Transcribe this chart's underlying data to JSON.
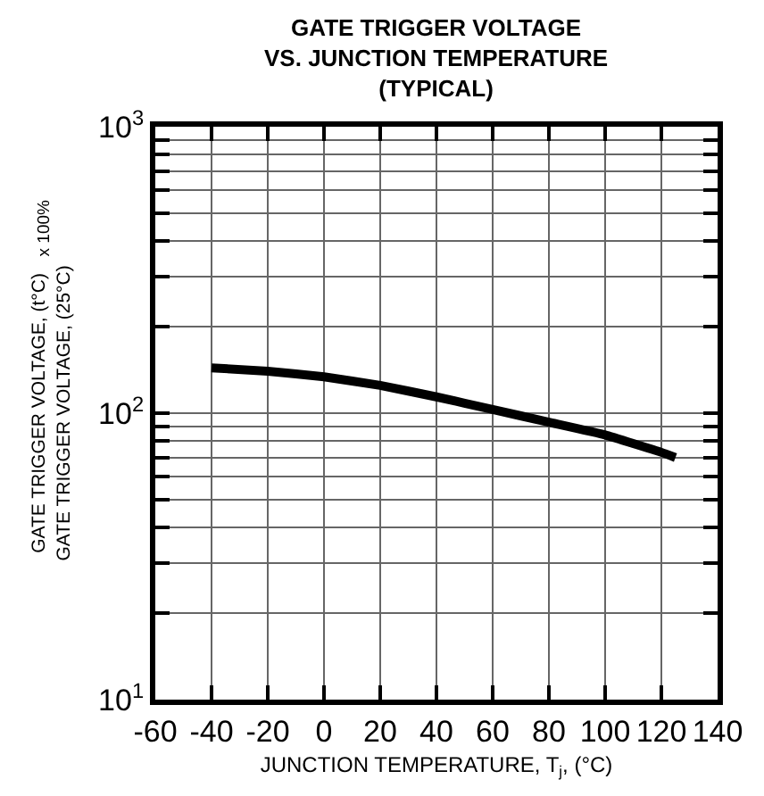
{
  "chart_data": {
    "type": "line",
    "title": "GATE TRIGGER VOLTAGE\nVS. JUNCTION TEMPERATURE\n(TYPICAL)",
    "xlabel": "JUNCTION TEMPERATURE, T$_{j}$, (°C)",
    "ylabel": "GATE TRIGGER VOLTAGE, (t°C)\nGATE TRIGGER VOLTAGE, (25°C)",
    "annotations": [
      "x 100%"
    ],
    "x": [
      -40,
      -20,
      0,
      20,
      40,
      60,
      80,
      100,
      120,
      125
    ],
    "series": [
      {
        "color": "#000000",
        "values": [
          144,
          140,
          134,
          125,
          114,
          103,
          93,
          84,
          73,
          70
        ]
      }
    ],
    "xlim": [
      -60,
      140
    ],
    "xticks": [
      -60,
      -40,
      -20,
      0,
      20,
      40,
      60,
      80,
      100,
      120,
      140
    ],
    "ylim": [
      10,
      1000
    ],
    "log": true,
    "yticks": [
      {
        "value": 10,
        "label": "10$^{1}$"
      },
      {
        "value": 20,
        "label": null
      },
      {
        "value": 30,
        "label": null
      },
      {
        "value": 40,
        "label": null
      },
      {
        "value": 50,
        "label": null
      },
      {
        "value": 60,
        "label": null
      },
      {
        "value": 70,
        "label": null
      },
      {
        "value": 80,
        "label": null
      },
      {
        "value": 90,
        "label": null
      },
      {
        "value": 100,
        "label": "10$^{2}$"
      },
      {
        "value": 200,
        "label": null
      },
      {
        "value": 300,
        "label": null
      },
      {
        "value": 400,
        "label": null
      },
      {
        "value": 500,
        "label": null
      },
      {
        "value": 600,
        "label": null
      },
      {
        "value": 700,
        "label": null
      },
      {
        "value": 800,
        "label": null
      },
      {
        "value": 900,
        "label": null
      },
      {
        "value": 1000,
        "label": "10$^{3}$"
      }
    ],
    "grid": true,
    "marker": "none",
    "line_style": "solid"
  }
}
